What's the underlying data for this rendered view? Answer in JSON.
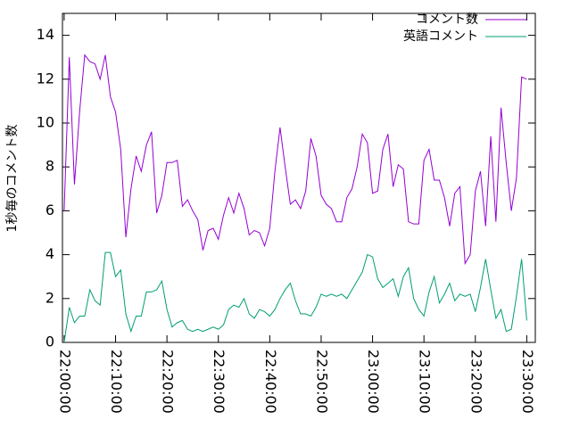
{
  "chart_data": {
    "type": "line",
    "ylabel": "1秒毎のコメント数",
    "x": [
      "22:00:00",
      "22:01:00",
      "22:02:00",
      "22:03:00",
      "22:04:00",
      "22:05:00",
      "22:06:00",
      "22:07:00",
      "22:08:00",
      "22:09:00",
      "22:10:00",
      "22:11:00",
      "22:12:00",
      "22:13:00",
      "22:14:00",
      "22:15:00",
      "22:16:00",
      "22:17:00",
      "22:18:00",
      "22:19:00",
      "22:20:00",
      "22:21:00",
      "22:22:00",
      "22:23:00",
      "22:24:00",
      "22:25:00",
      "22:26:00",
      "22:27:00",
      "22:28:00",
      "22:29:00",
      "22:30:00",
      "22:31:00",
      "22:32:00",
      "22:33:00",
      "22:34:00",
      "22:35:00",
      "22:36:00",
      "22:37:00",
      "22:38:00",
      "22:39:00",
      "22:40:00",
      "22:41:00",
      "22:42:00",
      "22:43:00",
      "22:44:00",
      "22:45:00",
      "22:46:00",
      "22:47:00",
      "22:48:00",
      "22:49:00",
      "22:50:00",
      "22:51:00",
      "22:52:00",
      "22:53:00",
      "22:54:00",
      "22:55:00",
      "22:56:00",
      "22:57:00",
      "22:58:00",
      "22:59:00",
      "23:00:00",
      "23:01:00",
      "23:02:00",
      "23:03:00",
      "23:04:00",
      "23:05:00",
      "23:06:00",
      "23:07:00",
      "23:08:00",
      "23:09:00",
      "23:10:00",
      "23:11:00",
      "23:12:00",
      "23:13:00",
      "23:14:00",
      "23:15:00",
      "23:16:00",
      "23:17:00",
      "23:18:00",
      "23:19:00",
      "23:20:00",
      "23:21:00",
      "23:22:00",
      "23:23:00",
      "23:24:00",
      "23:25:00",
      "23:26:00",
      "23:27:00",
      "23:28:00",
      "23:29:00",
      "23:30:00"
    ],
    "series": [
      {
        "name": "コメント数",
        "color": "#9400d3",
        "values": [
          6,
          13,
          7.2,
          10.5,
          13.1,
          12.8,
          12.7,
          12,
          13.1,
          11.2,
          10.5,
          8.8,
          4.8,
          7,
          8.5,
          7.8,
          9,
          9.6,
          5.9,
          6.7,
          8.2,
          8.2,
          8.3,
          6.2,
          6.5,
          6,
          5.6,
          4.2,
          5.1,
          5.2,
          4.7,
          5.8,
          6.6,
          5.9,
          6.8,
          6.1,
          4.9,
          5.1,
          5,
          4.4,
          5.2,
          7.8,
          9.8,
          8,
          6.3,
          6.5,
          6.1,
          6.9,
          9.3,
          8.5,
          6.7,
          6.3,
          6.1,
          5.5,
          5.5,
          6.6,
          7,
          8,
          9.5,
          9.1,
          6.8,
          6.9,
          8.8,
          9.5,
          7.1,
          8.1,
          7.9,
          5.5,
          5.4,
          5.4,
          8.3,
          8.8,
          7.4,
          7.4,
          6.6,
          5.3,
          6.8,
          7.1,
          3.6,
          4,
          6.9,
          7.8,
          5.3,
          9.4,
          5.5,
          10.7,
          8.2,
          6,
          7.5,
          12.1,
          12
        ]
      },
      {
        "name": "英語コメント",
        "color": "#009e73",
        "values": [
          0,
          1.6,
          0.9,
          1.2,
          1.2,
          2.4,
          1.9,
          1.7,
          4.1,
          4.1,
          3,
          3.3,
          1.3,
          0.5,
          1.2,
          1.2,
          2.3,
          2.3,
          2.4,
          2.8,
          1.5,
          0.7,
          0.9,
          1,
          0.6,
          0.5,
          0.6,
          0.5,
          0.6,
          0.7,
          0.6,
          0.8,
          1.5,
          1.7,
          1.6,
          2,
          1.3,
          1.1,
          1.5,
          1.4,
          1.2,
          1.5,
          2,
          2.4,
          2.7,
          1.9,
          1.3,
          1.3,
          1.2,
          1.6,
          2.2,
          2.1,
          2.2,
          2.1,
          2.2,
          2,
          2.4,
          2.8,
          3.2,
          4,
          3.9,
          2.9,
          2.5,
          2.7,
          2.9,
          2.1,
          3,
          3.4,
          2,
          1.5,
          1.2,
          2.3,
          3,
          1.8,
          2.2,
          2.7,
          1.9,
          2.2,
          2.1,
          2.2,
          1.4,
          2.5,
          3.8,
          2.4,
          1.1,
          1.5,
          0.5,
          0.6,
          2.1,
          3.8,
          1
        ]
      }
    ],
    "xlim": [
      "21:59:40",
      "23:31:40"
    ],
    "xticks": [
      "22:00:00",
      "22:10:00",
      "22:20:00",
      "22:30:00",
      "22:40:00",
      "22:50:00",
      "23:00:00",
      "23:10:00",
      "23:20:00",
      "23:30:00"
    ],
    "ylim": [
      0,
      15
    ],
    "yticks": [
      0,
      2,
      4,
      6,
      8,
      10,
      12,
      14
    ],
    "legend": "top-right"
  }
}
